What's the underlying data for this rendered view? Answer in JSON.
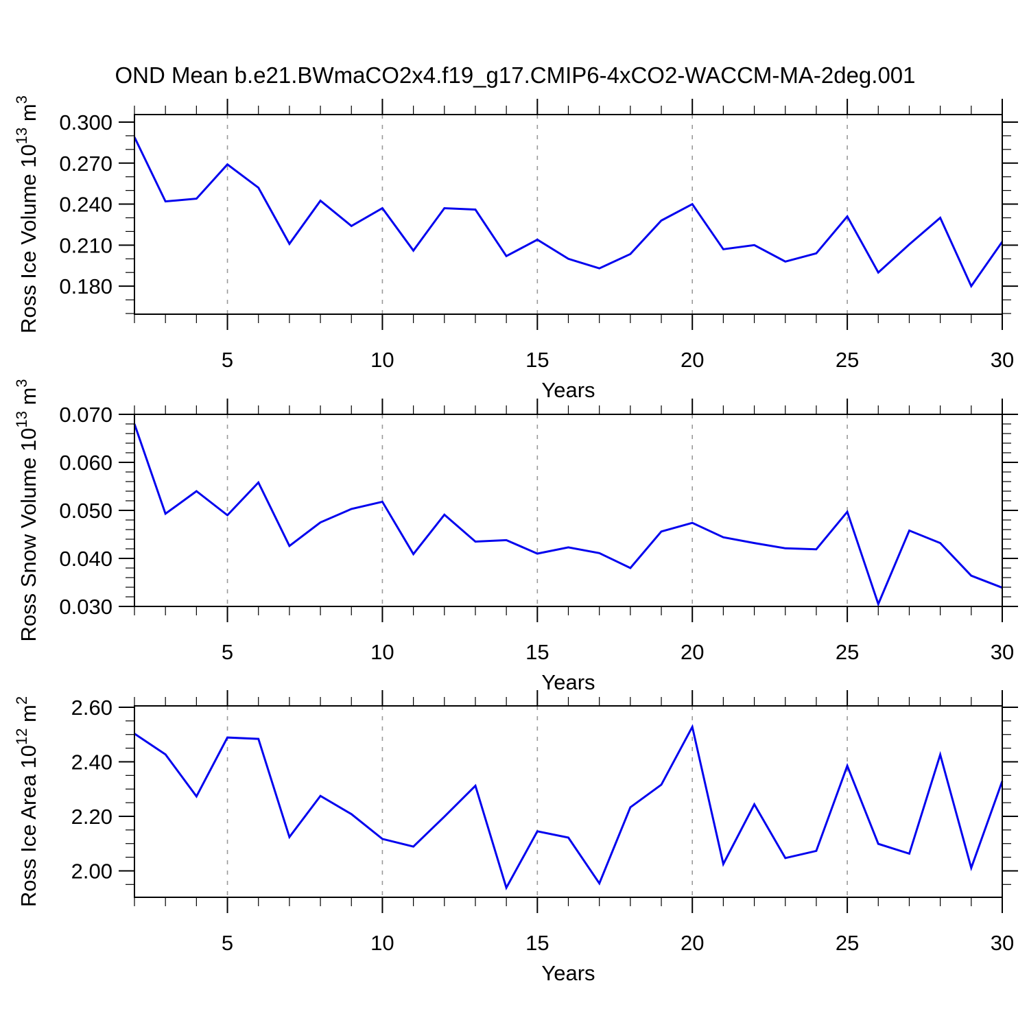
{
  "title": "OND Mean b.e21.BWmaCO2x4.f19_g17.CMIP6-4xCO2-WACCM-MA-2deg.001",
  "xaxis": {
    "label": "Years",
    "range": [
      2,
      30
    ],
    "tick_years": [
      5,
      10,
      15,
      20,
      25,
      30
    ],
    "tick_labels": [
      "5",
      "10",
      "15",
      "20",
      "25",
      "30"
    ],
    "minor_step": 1,
    "grid_years": [
      5,
      10,
      15,
      20,
      25
    ]
  },
  "colors": {
    "line": "#0303ee",
    "grid": "#999999",
    "axis": "#000000",
    "text": "#000000",
    "background": "#ffffff"
  },
  "chart_data": [
    {
      "type": "line",
      "id": "ross-ice-volume",
      "ylabel_text": "Ross Ice Volume 10^13 m^3",
      "ylabel_segments": [
        [
          "t",
          "Ross Ice Volume 10"
        ],
        [
          "s",
          "13"
        ],
        [
          "t",
          " m"
        ],
        [
          "s",
          "3"
        ]
      ],
      "xlabel": "Years",
      "ylim": [
        0.1595,
        0.3055
      ],
      "yticks": [
        0.18,
        0.21,
        0.24,
        0.27,
        0.3
      ],
      "ytick_labels": [
        "0.180",
        "0.210",
        "0.240",
        "0.270",
        "0.300"
      ],
      "yminor_step": 0.01,
      "grid": "vertical-dashed",
      "legend": "none",
      "x": [
        2,
        3,
        4,
        5,
        6,
        7,
        8,
        9,
        10,
        11,
        12,
        13,
        14,
        15,
        16,
        17,
        18,
        19,
        20,
        21,
        22,
        23,
        24,
        25,
        26,
        27,
        28,
        29,
        30
      ],
      "values": [
        0.289,
        0.242,
        0.244,
        0.269,
        0.252,
        0.211,
        0.2425,
        0.224,
        0.237,
        0.206,
        0.237,
        0.236,
        0.202,
        0.214,
        0.2,
        0.193,
        0.2035,
        0.228,
        0.24,
        0.207,
        0.21,
        0.198,
        0.204,
        0.231,
        0.19,
        0.2105,
        0.23,
        0.18,
        0.2125
      ]
    },
    {
      "type": "line",
      "id": "ross-snow-volume",
      "ylabel_text": "Ross Snow Volume 10^13 m^3",
      "ylabel_segments": [
        [
          "t",
          "Ross Snow Volume 10"
        ],
        [
          "s",
          "13"
        ],
        [
          "t",
          " m"
        ],
        [
          "s",
          "3"
        ]
      ],
      "xlabel": "Years",
      "ylim": [
        0.03,
        0.07
      ],
      "yticks": [
        0.03,
        0.04,
        0.05,
        0.06,
        0.07
      ],
      "ytick_labels": [
        "0.030",
        "0.040",
        "0.050",
        "0.060",
        "0.070"
      ],
      "yminor_step": 0.002,
      "grid": "vertical-dashed",
      "legend": "none",
      "x": [
        2,
        3,
        4,
        5,
        6,
        7,
        8,
        9,
        10,
        11,
        12,
        13,
        14,
        15,
        16,
        17,
        18,
        19,
        20,
        21,
        22,
        23,
        24,
        25,
        26,
        27,
        28,
        29,
        30
      ],
      "values": [
        0.068,
        0.0493,
        0.054,
        0.049,
        0.0558,
        0.0426,
        0.0475,
        0.0503,
        0.0518,
        0.0409,
        0.0491,
        0.0435,
        0.0438,
        0.041,
        0.0423,
        0.0411,
        0.038,
        0.0456,
        0.0474,
        0.0444,
        0.0432,
        0.0421,
        0.0419,
        0.0497,
        0.0305,
        0.0458,
        0.0432,
        0.0364,
        0.0339
      ]
    },
    {
      "type": "line",
      "id": "ross-ice-area",
      "ylabel_text": "Ross Ice Area 10^12 m^2",
      "ylabel_segments": [
        [
          "t",
          "Ross Ice Area 10"
        ],
        [
          "s",
          "12"
        ],
        [
          "t",
          " m"
        ],
        [
          "s",
          "2"
        ]
      ],
      "xlabel": "Years",
      "ylim": [
        1.903,
        2.605
      ],
      "yticks": [
        2.0,
        2.2,
        2.4,
        2.6
      ],
      "ytick_labels": [
        "2.00",
        "2.20",
        "2.40",
        "2.60"
      ],
      "yminor_step": 0.05,
      "grid": "vertical-dashed",
      "legend": "none",
      "x": [
        2,
        3,
        4,
        5,
        6,
        7,
        8,
        9,
        10,
        11,
        12,
        13,
        14,
        15,
        16,
        17,
        18,
        19,
        20,
        21,
        22,
        23,
        24,
        25,
        26,
        27,
        28,
        29,
        30
      ],
      "values": [
        2.503,
        2.427,
        2.273,
        2.489,
        2.484,
        2.124,
        2.275,
        2.208,
        2.117,
        2.089,
        2.199,
        2.312,
        1.938,
        2.145,
        2.122,
        1.954,
        2.233,
        2.316,
        2.528,
        2.025,
        2.244,
        2.047,
        2.073,
        2.385,
        2.099,
        2.063,
        2.426,
        2.011,
        2.329
      ]
    }
  ]
}
